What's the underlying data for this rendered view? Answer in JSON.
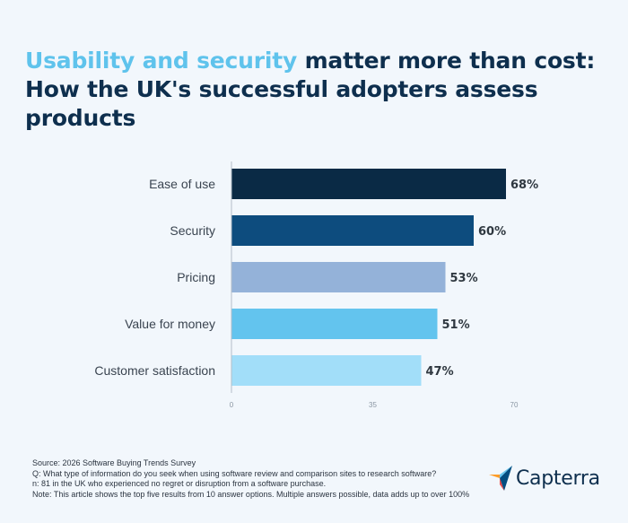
{
  "title": {
    "highlight": "Usability and security",
    "rest_line1": " matter more than cost:",
    "line2": "How the UK's successful adopters assess products"
  },
  "chart_data": {
    "type": "bar",
    "orientation": "horizontal",
    "categories": [
      "Ease of use",
      "Security",
      "Pricing",
      "Value for money",
      "Customer satisfaction"
    ],
    "values": [
      68,
      60,
      53,
      51,
      47
    ],
    "value_labels": [
      "68%",
      "60%",
      "53%",
      "51%",
      "47%"
    ],
    "colors": [
      "#0a2a45",
      "#0d4c7e",
      "#94b2d9",
      "#63c4ee",
      "#a2def9"
    ],
    "xlim": [
      0,
      70
    ],
    "xticks": [
      "0",
      "35",
      "70"
    ],
    "grid": false,
    "legend": "none"
  },
  "footer": {
    "source": "Source: 2026 Software Buying Trends Survey",
    "question": "Q: What type of information do you seek when using software review and comparison sites to research software?",
    "sample": "n: 81 in the UK who experienced no regret or disruption from a software purchase.",
    "note": "Note: This article shows the top five results from 10 answer options. Multiple answers possible, data adds up to over 100%"
  },
  "brand": {
    "logo_text": "Capterra",
    "logo_icon": "capterra-arrow-icon",
    "logo_colors": [
      "#ff9d28",
      "#68c5ed",
      "#044d80",
      "#e54747"
    ]
  }
}
